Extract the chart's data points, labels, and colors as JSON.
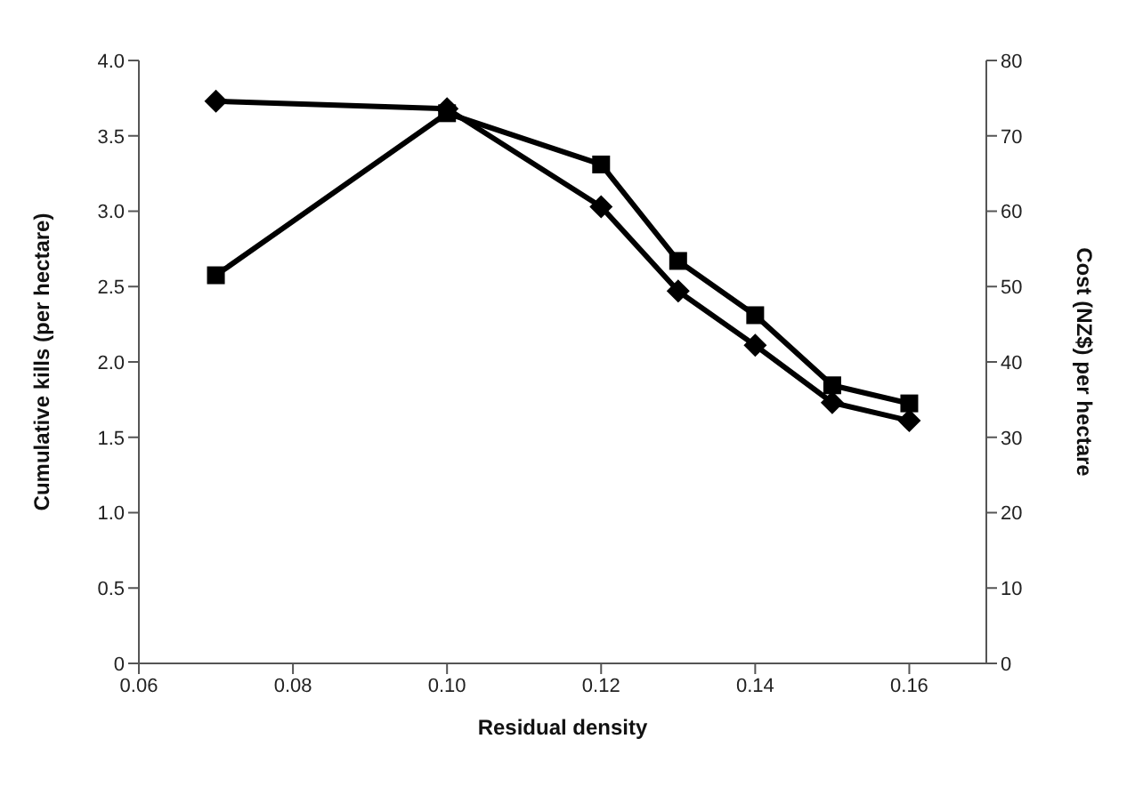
{
  "chart_data": {
    "type": "line",
    "xlabel": "Residual density",
    "ylabel": "Cumulative kills (per hectare)",
    "y2label": "Cost (NZ$) per hectare",
    "x": [
      0.07,
      0.1,
      0.12,
      0.13,
      0.14,
      0.15,
      0.16
    ],
    "series": [
      {
        "color": "#000000",
        "marker": "diamond",
        "values": [
          3.73,
          3.68,
          3.03,
          2.47,
          2.11,
          1.73,
          1.61
        ]
      },
      {
        "color": "#000000",
        "marker": "square",
        "axis": "y2",
        "values": [
          51.5,
          73,
          66.2,
          53.4,
          46.2,
          36.9,
          34.5
        ]
      }
    ],
    "xlim": [
      0.06,
      0.17
    ],
    "xticks": [
      {
        "value": 0.06,
        "label": "0.06"
      },
      {
        "value": 0.08,
        "label": "0.08"
      },
      {
        "value": 0.1,
        "label": "0.10"
      },
      {
        "value": 0.12,
        "label": "0.12"
      },
      {
        "value": 0.14,
        "label": "0.14"
      },
      {
        "value": 0.16,
        "label": "0.16"
      }
    ],
    "ylim": [
      0,
      4
    ],
    "yticks": [
      {
        "value": 0,
        "label": "0"
      },
      {
        "value": 0.5,
        "label": "0.5"
      },
      {
        "value": 1,
        "label": "1.0"
      },
      {
        "value": 1.5,
        "label": "1.5"
      },
      {
        "value": 2,
        "label": "2.0"
      },
      {
        "value": 2.5,
        "label": "2.5"
      },
      {
        "value": 3,
        "label": "3.0"
      },
      {
        "value": 3.5,
        "label": "3.5"
      },
      {
        "value": 4,
        "label": "4.0"
      }
    ],
    "y2lim": [
      0,
      80
    ],
    "y2ticks": [
      0,
      10,
      20,
      30,
      40,
      50,
      60,
      70,
      80
    ],
    "grid": false,
    "legend": false,
    "line_style": "solid"
  }
}
